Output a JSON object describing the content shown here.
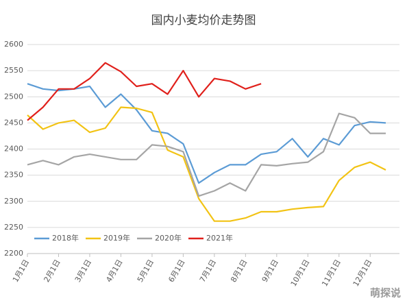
{
  "chart_data": {
    "type": "line",
    "title": "国内小麦均价走势图",
    "x": [
      1,
      1.5,
      2,
      2.5,
      3,
      3.5,
      4,
      4.5,
      5,
      5.5,
      6,
      6.5,
      7,
      7.5,
      8,
      8.5,
      9,
      9.5,
      10,
      10.5,
      11,
      11.5,
      12,
      12.5
    ],
    "xlim": [
      1,
      12.94
    ],
    "xticks": [
      {
        "value": 1,
        "label": "1月1日"
      },
      {
        "value": 2,
        "label": "2月1日"
      },
      {
        "value": 3,
        "label": "3月1日"
      },
      {
        "value": 4,
        "label": "4月1日"
      },
      {
        "value": 5,
        "label": "5月1日"
      },
      {
        "value": 6,
        "label": "6月1日"
      },
      {
        "value": 7,
        "label": "7月1日"
      },
      {
        "value": 8,
        "label": "8月1日"
      },
      {
        "value": 9,
        "label": "9月1日"
      },
      {
        "value": 10,
        "label": "10月1日"
      },
      {
        "value": 11,
        "label": "11月1日"
      },
      {
        "value": 12,
        "label": "12月1日"
      }
    ],
    "ylim": [
      2200,
      2600
    ],
    "yticks": [
      2200,
      2250,
      2300,
      2350,
      2400,
      2450,
      2500,
      2550,
      2600
    ],
    "grid": true,
    "legend": "bottom-left",
    "series": [
      {
        "name": "2018年",
        "color": "#5b9bd5",
        "values": [
          2525,
          2515,
          2512,
          2515,
          2520,
          2480,
          2505,
          2475,
          2435,
          2430,
          2410,
          2335,
          2355,
          2370,
          2370,
          2390,
          2395,
          2420,
          2385,
          2420,
          2408,
          2445,
          2452,
          2450
        ]
      },
      {
        "name": "2019年",
        "color": "#f2c314",
        "values": [
          2465,
          2438,
          2450,
          2455,
          2432,
          2440,
          2480,
          2478,
          2470,
          2398,
          2385,
          2305,
          2262,
          2262,
          2268,
          2280,
          2280,
          2285,
          2288,
          2290,
          2340,
          2365,
          2375,
          2360
        ]
      },
      {
        "name": "2020年",
        "color": "#a5a5a5",
        "values": [
          2370,
          2378,
          2370,
          2385,
          2390,
          2385,
          2380,
          2380,
          2408,
          2405,
          2395,
          2310,
          2320,
          2335,
          2320,
          2370,
          2368,
          2372,
          2375,
          2395,
          2468,
          2460,
          2430,
          2430
        ]
      },
      {
        "name": "2021年",
        "color": "#e0201b",
        "values": [
          2455,
          2480,
          2515,
          2515,
          2535,
          2565,
          2548,
          2520,
          2525,
          2505,
          2550,
          2500,
          2535,
          2530,
          2515,
          2525,
          null,
          null,
          null,
          null,
          null,
          null,
          null,
          null
        ]
      }
    ],
    "watermark": "萌探说"
  }
}
